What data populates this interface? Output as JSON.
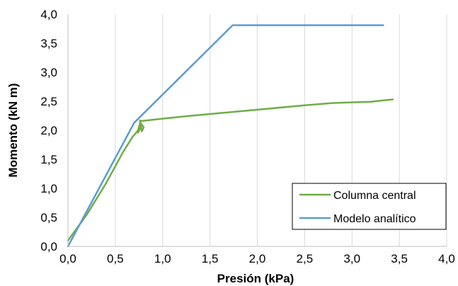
{
  "chart_data": {
    "type": "line",
    "title": "",
    "xlabel": "Presión (kPa)",
    "ylabel": "Momento (kN m)",
    "xlim": [
      0,
      4
    ],
    "ylim": [
      0,
      4
    ],
    "x_ticks": [
      "0,0",
      "0,5",
      "1,0",
      "1,5",
      "2,0",
      "2,5",
      "3,0",
      "3,5",
      "4,0"
    ],
    "y_ticks": [
      "0,0",
      "0,5",
      "1,0",
      "1,5",
      "2,0",
      "2,5",
      "3,0",
      "3,5",
      "4,0"
    ],
    "grid": "vertical",
    "legend_position": "bottom-right",
    "series": [
      {
        "name": "Columna central",
        "color": "#70ad47",
        "x": [
          0.0,
          0.2,
          0.4,
          0.58,
          0.68,
          0.74,
          0.76,
          0.74,
          0.78,
          0.76,
          0.8,
          0.78,
          0.76,
          0.78,
          1.0,
          1.3,
          1.7,
          2.1,
          2.5,
          2.8,
          3.0,
          3.2,
          3.3,
          3.43
        ],
        "y": [
          0.1,
          0.55,
          1.08,
          1.62,
          1.88,
          2.0,
          2.12,
          1.96,
          2.08,
          2.14,
          2.05,
          1.98,
          2.17,
          2.16,
          2.2,
          2.25,
          2.31,
          2.37,
          2.43,
          2.47,
          2.48,
          2.49,
          2.51,
          2.53
        ]
      },
      {
        "name": "Modelo analítico",
        "color": "#5b9bd5",
        "x": [
          0.0,
          0.7,
          1.74,
          3.33
        ],
        "y": [
          0.0,
          2.13,
          3.81,
          3.81
        ]
      }
    ]
  }
}
